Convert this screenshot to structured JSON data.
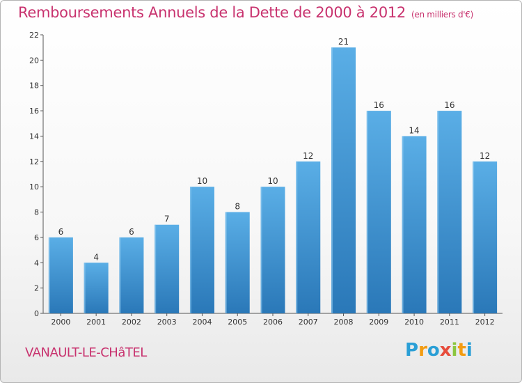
{
  "header": {
    "title": "Remboursements Annuels de la Dette de 2000 à 2012",
    "subtitle": "(en milliers d'€)"
  },
  "footer": {
    "town": "VANAULT-LE-CHâTEL",
    "logo": {
      "text": "Proxiti",
      "letters": [
        {
          "ch": "P",
          "color": "#2a9fd6"
        },
        {
          "ch": "r",
          "color": "#f39c12"
        },
        {
          "ch": "o",
          "color": "#2a9fd6"
        },
        {
          "ch": "x",
          "color": "#e74c3c"
        },
        {
          "ch": "i",
          "color": "#8cc63f"
        },
        {
          "ch": "t",
          "color": "#f39c12"
        },
        {
          "ch": "i",
          "color": "#2a9fd6"
        }
      ]
    }
  },
  "chart_data": {
    "type": "bar",
    "title": "Remboursements Annuels de la Dette de 2000 à 2012",
    "subtitle": "(en milliers d'€)",
    "categories": [
      "2000",
      "2001",
      "2002",
      "2003",
      "2004",
      "2005",
      "2006",
      "2007",
      "2008",
      "2009",
      "2010",
      "2011",
      "2012"
    ],
    "values": [
      6,
      4,
      6,
      7,
      10,
      8,
      10,
      12,
      21,
      16,
      14,
      16,
      12
    ],
    "data_labels": [
      "6",
      "4",
      "6",
      "7",
      "10",
      "8",
      "10",
      "12",
      "21",
      "16",
      "14",
      "16",
      "12"
    ],
    "ylim": [
      0,
      22
    ],
    "yticks": [
      0,
      2,
      4,
      6,
      8,
      10,
      12,
      14,
      16,
      18,
      20,
      22
    ],
    "xlabel": "",
    "ylabel": "",
    "grid": false,
    "colors": {
      "bar_top": "#5aaee6",
      "bar_bottom": "#2a78b8",
      "title": "#c8326e"
    }
  }
}
